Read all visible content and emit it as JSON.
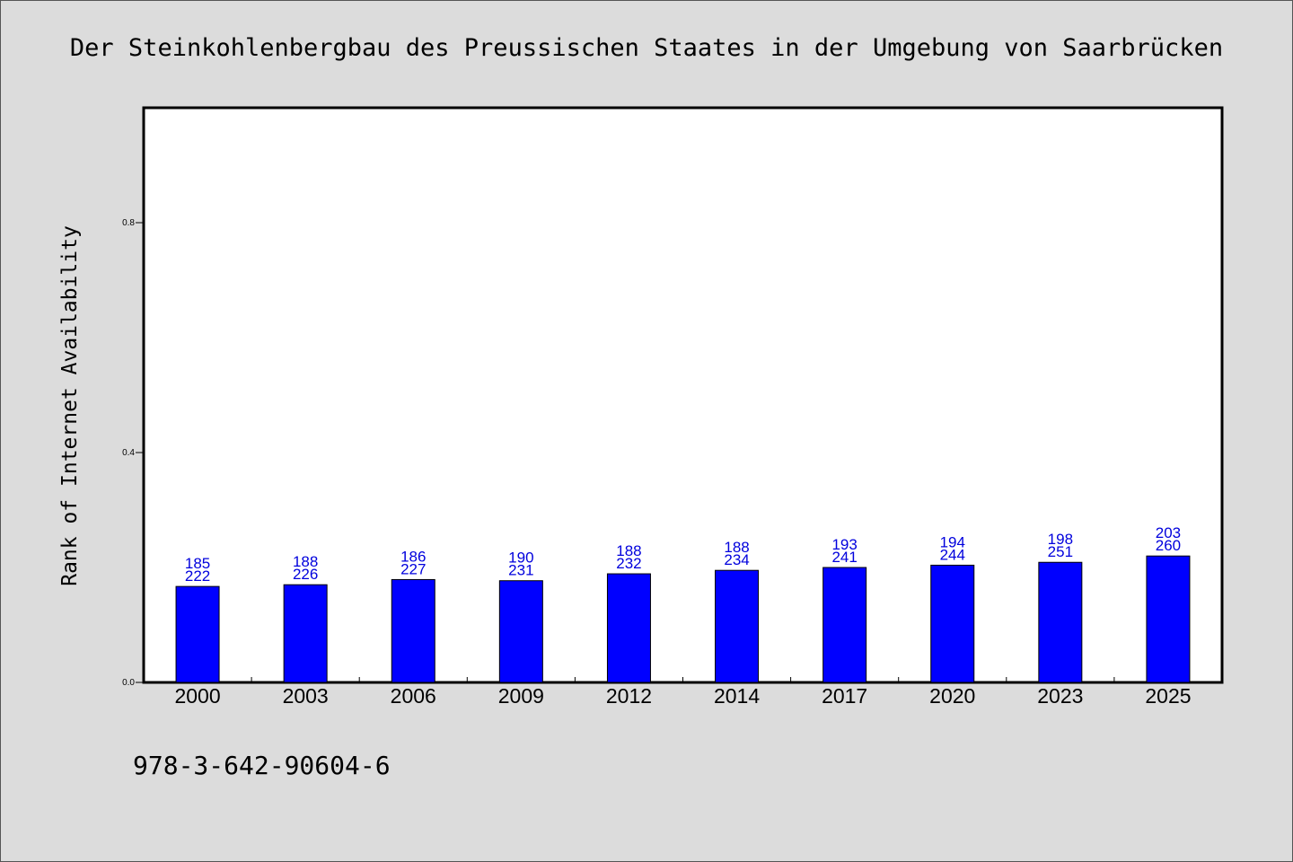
{
  "chart_data": {
    "type": "bar",
    "title": "Der Steinkohlenbergbau des Preussischen Staates in der Umgebung von Saarbrücken",
    "xlabel": "",
    "ylabel": "Rank of Internet Availability",
    "ylim": [
      0,
      1.0
    ],
    "yticks": [
      "0.0",
      "0.4",
      "0.8"
    ],
    "categories": [
      "2000",
      "2003",
      "2006",
      "2009",
      "2012",
      "2014",
      "2017",
      "2020",
      "2023",
      "2025"
    ],
    "values": [
      0.167,
      0.17,
      0.179,
      0.177,
      0.189,
      0.195,
      0.2,
      0.204,
      0.209,
      0.22
    ],
    "label_top": [
      "185",
      "188",
      "186",
      "190",
      "188",
      "188",
      "193",
      "194",
      "198",
      "203"
    ],
    "label_bottom": [
      "222",
      "226",
      "227",
      "231",
      "232",
      "234",
      "241",
      "244",
      "251",
      "260"
    ],
    "bar_color": "#0000ff",
    "label_color": "#0000dd",
    "grid": false,
    "legend": "none"
  },
  "footer": {
    "isbn": "978-3-642-90604-6"
  }
}
